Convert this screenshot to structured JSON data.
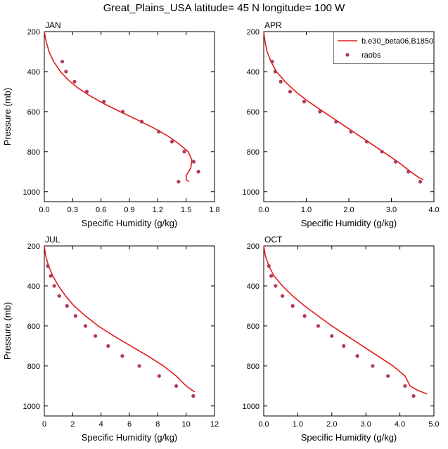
{
  "title": "Great_Plains_USA  latitude= 45 N longitude= 100 W",
  "legend": {
    "model_label": "b.e30_beta06.B1850C",
    "obs_label": "raobs",
    "model_color": "#e41a1c",
    "obs_color": "#b03a5b"
  },
  "chart_data": [
    {
      "type": "line",
      "panel": "JAN",
      "xlabel": "Specific Humidity (g/kg)",
      "ylabel": "Pressure (mb)",
      "xlim": [
        0,
        1.8
      ],
      "ylim": [
        200,
        1050
      ],
      "y_inverted": true,
      "xticks": [
        "0.0",
        "0.3",
        "0.6",
        "0.9",
        "1.2",
        "1.5",
        "1.8"
      ],
      "xtick_values": [
        0,
        0.3,
        0.6,
        0.9,
        1.2,
        1.5,
        1.8
      ],
      "yticks": [
        200,
        400,
        600,
        800,
        1000
      ],
      "series": [
        {
          "name": "b.e30_beta06.B1850C",
          "kind": "line",
          "x": [
            0.0,
            0.02,
            0.05,
            0.1,
            0.17,
            0.25,
            0.35,
            0.48,
            0.63,
            0.8,
            0.98,
            1.15,
            1.3,
            1.42,
            1.52,
            1.56,
            1.55,
            1.5,
            1.5,
            1.53
          ],
          "y": [
            200,
            250,
            300,
            350,
            400,
            440,
            480,
            520,
            560,
            600,
            640,
            680,
            720,
            760,
            800,
            840,
            880,
            920,
            940,
            950
          ]
        },
        {
          "name": "raobs",
          "kind": "scatter",
          "x": [
            0.19,
            0.23,
            0.32,
            0.45,
            0.63,
            0.83,
            1.03,
            1.21,
            1.35,
            1.48,
            1.58,
            1.63,
            1.42
          ],
          "y": [
            350,
            400,
            450,
            500,
            550,
            600,
            650,
            700,
            750,
            800,
            850,
            900,
            950
          ]
        }
      ]
    },
    {
      "type": "line",
      "panel": "APR",
      "xlabel": "Specific Humidity (g/kg)",
      "ylabel": "",
      "xlim": [
        0,
        4.0
      ],
      "ylim": [
        200,
        1050
      ],
      "y_inverted": true,
      "xticks": [
        "0.0",
        "1.0",
        "2.0",
        "3.0",
        "4.0"
      ],
      "xtick_values": [
        0,
        1,
        2,
        3,
        4
      ],
      "yticks": [
        200,
        400,
        600,
        800,
        1000
      ],
      "series": [
        {
          "name": "b.e30_beta06.B1850C",
          "kind": "line",
          "x": [
            0.0,
            0.03,
            0.08,
            0.17,
            0.3,
            0.5,
            0.75,
            1.05,
            1.4,
            1.75,
            2.1,
            2.45,
            2.8,
            3.15,
            3.45,
            3.65,
            3.75
          ],
          "y": [
            200,
            250,
            300,
            350,
            400,
            450,
            500,
            550,
            600,
            650,
            700,
            750,
            800,
            850,
            900,
            930,
            940
          ]
        },
        {
          "name": "raobs",
          "kind": "scatter",
          "x": [
            0.2,
            0.27,
            0.4,
            0.62,
            0.95,
            1.32,
            1.7,
            2.05,
            2.42,
            2.78,
            3.1,
            3.4,
            3.68
          ],
          "y": [
            350,
            400,
            450,
            500,
            550,
            600,
            650,
            700,
            750,
            800,
            850,
            900,
            950
          ]
        }
      ]
    },
    {
      "type": "line",
      "panel": "JUL",
      "xlabel": "Specific Humidity (g/kg)",
      "ylabel": "Pressure (mb)",
      "xlim": [
        0,
        12
      ],
      "ylim": [
        200,
        1050
      ],
      "y_inverted": true,
      "xticks": [
        "0",
        "2",
        "4",
        "6",
        "8",
        "10",
        "12"
      ],
      "xtick_values": [
        0,
        2,
        4,
        6,
        8,
        10,
        12
      ],
      "yticks": [
        200,
        400,
        600,
        800,
        1000
      ],
      "series": [
        {
          "name": "b.e30_beta06.B1850C",
          "kind": "line",
          "x": [
            0.0,
            0.1,
            0.3,
            0.6,
            1.0,
            1.5,
            2.1,
            2.9,
            3.8,
            4.9,
            6.1,
            7.3,
            8.4,
            9.3,
            10.0,
            10.6
          ],
          "y": [
            200,
            250,
            300,
            350,
            400,
            450,
            500,
            550,
            600,
            650,
            700,
            750,
            800,
            850,
            900,
            930
          ]
        },
        {
          "name": "raobs",
          "kind": "scatter",
          "x": [
            0.25,
            0.45,
            0.7,
            1.05,
            1.6,
            2.2,
            2.9,
            3.6,
            4.5,
            5.5,
            6.7,
            8.1,
            9.3,
            10.5
          ],
          "y": [
            300,
            350,
            400,
            450,
            500,
            550,
            600,
            650,
            700,
            750,
            800,
            850,
            900,
            950
          ]
        }
      ]
    },
    {
      "type": "line",
      "panel": "OCT",
      "xlabel": "Specific Humidity (g/kg)",
      "ylabel": "",
      "xlim": [
        0,
        5.0
      ],
      "ylim": [
        200,
        1050
      ],
      "y_inverted": true,
      "xticks": [
        "0.0",
        "1.0",
        "2.0",
        "3.0",
        "4.0",
        "5.0"
      ],
      "xtick_values": [
        0,
        1,
        2,
        3,
        4,
        5
      ],
      "yticks": [
        200,
        400,
        600,
        800,
        1000
      ],
      "series": [
        {
          "name": "b.e30_beta06.B1850C",
          "kind": "line",
          "x": [
            0.0,
            0.05,
            0.15,
            0.3,
            0.55,
            0.85,
            1.2,
            1.6,
            2.0,
            2.45,
            2.9,
            3.35,
            3.8,
            4.15,
            4.3,
            4.5,
            4.8
          ],
          "y": [
            200,
            250,
            300,
            350,
            400,
            450,
            500,
            550,
            600,
            650,
            700,
            750,
            800,
            850,
            900,
            920,
            940
          ]
        },
        {
          "name": "raobs",
          "kind": "scatter",
          "x": [
            0.15,
            0.22,
            0.35,
            0.55,
            0.85,
            1.2,
            1.6,
            2.0,
            2.35,
            2.75,
            3.2,
            3.65,
            4.15,
            4.4
          ],
          "y": [
            300,
            350,
            400,
            450,
            500,
            550,
            600,
            650,
            700,
            750,
            800,
            850,
            900,
            950
          ]
        }
      ]
    }
  ]
}
